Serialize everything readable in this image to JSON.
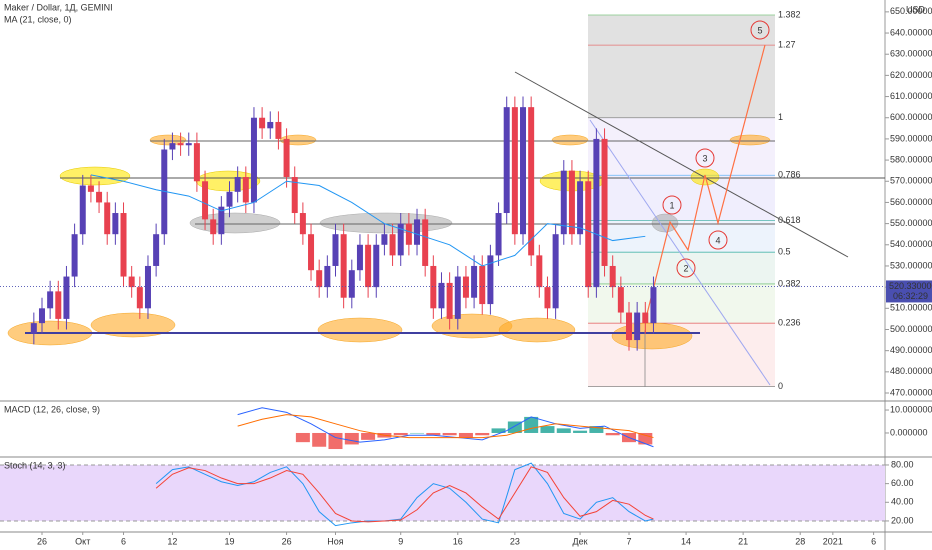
{
  "chart_data": [
    {
      "type": "candlestick",
      "title": "Maker / Dollar, 1Д, GEMINI",
      "currency": "USD",
      "x": [
        -1,
        0,
        1,
        2,
        3,
        4,
        5,
        6,
        7,
        8,
        9,
        10,
        11,
        12,
        13,
        14,
        15,
        16,
        17,
        18,
        19,
        20,
        21,
        22,
        23,
        24,
        25,
        26,
        27,
        28,
        29,
        30,
        31,
        32,
        33,
        34,
        35,
        36,
        37,
        38,
        39,
        40,
        41,
        42,
        43,
        44,
        45,
        46,
        47,
        48,
        49,
        50,
        51,
        52,
        53,
        54,
        55,
        56,
        57,
        58,
        59,
        60,
        61,
        62,
        63,
        64,
        65,
        66,
        67,
        68,
        69,
        70,
        71,
        72,
        73,
        74,
        75
      ],
      "open": [
        498,
        503,
        510,
        518,
        505,
        525,
        545,
        568,
        565,
        560,
        545,
        555,
        525,
        520,
        510,
        530,
        545,
        585,
        588,
        587,
        588,
        570,
        552,
        545,
        558,
        565,
        572,
        560,
        600,
        595,
        598,
        590,
        572,
        555,
        545,
        528,
        520,
        530,
        545,
        515,
        528,
        540,
        520,
        540,
        545,
        535,
        550,
        540,
        552,
        530,
        510,
        522,
        505,
        525,
        515,
        530,
        512,
        535,
        555,
        605,
        545,
        605,
        535,
        520,
        510,
        545,
        575,
        545,
        570,
        520,
        590,
        530,
        520,
        508,
        495,
        508,
        503
      ],
      "high": [
        508,
        515,
        523,
        523,
        530,
        550,
        573,
        573,
        570,
        565,
        560,
        560,
        530,
        525,
        535,
        550,
        590,
        593,
        593,
        593,
        593,
        575,
        557,
        563,
        570,
        577,
        577,
        605,
        605,
        603,
        603,
        595,
        577,
        560,
        550,
        533,
        535,
        550,
        550,
        533,
        545,
        545,
        545,
        550,
        550,
        555,
        555,
        557,
        557,
        535,
        527,
        527,
        530,
        530,
        535,
        535,
        540,
        560,
        610,
        610,
        610,
        610,
        540,
        525,
        550,
        580,
        580,
        575,
        575,
        595,
        595,
        535,
        525,
        513,
        513,
        513,
        525
      ],
      "low": [
        493,
        498,
        505,
        500,
        500,
        520,
        540,
        560,
        555,
        540,
        540,
        520,
        515,
        505,
        505,
        525,
        540,
        580,
        582,
        582,
        565,
        547,
        540,
        540,
        553,
        560,
        555,
        555,
        590,
        590,
        585,
        567,
        550,
        540,
        523,
        515,
        515,
        525,
        510,
        510,
        523,
        515,
        515,
        535,
        530,
        530,
        535,
        535,
        525,
        505,
        505,
        500,
        500,
        510,
        510,
        507,
        507,
        530,
        550,
        540,
        540,
        530,
        515,
        505,
        505,
        540,
        540,
        540,
        515,
        515,
        525,
        515,
        503,
        490,
        490,
        498,
        498
      ],
      "close": [
        503,
        510,
        518,
        505,
        525,
        545,
        568,
        565,
        560,
        545,
        555,
        525,
        520,
        510,
        530,
        545,
        585,
        588,
        587,
        588,
        570,
        552,
        545,
        558,
        565,
        572,
        560,
        600,
        595,
        598,
        590,
        572,
        555,
        545,
        528,
        520,
        530,
        545,
        515,
        528,
        540,
        520,
        540,
        545,
        535,
        550,
        540,
        552,
        530,
        510,
        522,
        505,
        525,
        515,
        530,
        512,
        535,
        555,
        605,
        545,
        605,
        535,
        520,
        510,
        545,
        575,
        545,
        570,
        520,
        590,
        530,
        520,
        508,
        495,
        508,
        503,
        520
      ],
      "up_color": "#5741b5",
      "down_color": "#e8414f",
      "ma": {
        "name": "MA (21, close, 0)",
        "color": "#2196f3",
        "x": [
          6,
          10,
          14,
          18,
          22,
          26,
          30,
          34,
          38,
          42,
          46,
          50,
          54,
          58,
          62,
          66,
          70,
          74
        ],
        "values": [
          573,
          570,
          566,
          563,
          556,
          560,
          570,
          568,
          560,
          550,
          545,
          540,
          530,
          535,
          550,
          548,
          542,
          544
        ]
      },
      "last_price": {
        "value": 520.33,
        "label": "520.330000",
        "countdown": "06:32:29",
        "color": "#4a4fb0"
      },
      "fib": {
        "low": 473,
        "high": 600,
        "levels": [
          0,
          0.236,
          0.382,
          0.5,
          0.618,
          0.786,
          1,
          1.27,
          1.382
        ]
      },
      "annotations": [
        "1",
        "2",
        "3",
        "4",
        "5"
      ],
      "xlim": [
        -5.15,
        103.4
      ],
      "xticks": [
        {
          "value": 0,
          "label": "26"
        },
        {
          "value": 5,
          "label": "Окт"
        },
        {
          "value": 10,
          "label": "6"
        },
        {
          "value": 16,
          "label": "12"
        },
        {
          "value": 23,
          "label": "19"
        },
        {
          "value": 30,
          "label": "26"
        },
        {
          "value": 36,
          "label": "Ноя"
        },
        {
          "value": 44,
          "label": "9"
        },
        {
          "value": 51,
          "label": "16"
        },
        {
          "value": 58,
          "label": "23"
        },
        {
          "value": 66,
          "label": "Дек"
        },
        {
          "value": 72,
          "label": "7"
        },
        {
          "value": 79,
          "label": "14"
        },
        {
          "value": 86,
          "label": "21"
        },
        {
          "value": 93,
          "label": "28"
        },
        {
          "value": 97,
          "label": "2021"
        },
        {
          "value": 102,
          "label": "6"
        }
      ],
      "ylim": [
        466.7,
        655.6
      ],
      "yticks": [
        {
          "value": 470,
          "label": "470.000000"
        },
        {
          "value": 480,
          "label": "480.000000"
        },
        {
          "value": 490,
          "label": "490.000000"
        },
        {
          "value": 500,
          "label": "500.000000"
        },
        {
          "value": 510,
          "label": "510.000000"
        },
        {
          "value": 520,
          "label": "520.000000"
        },
        {
          "value": 530,
          "label": "530.000000"
        },
        {
          "value": 540,
          "label": "540.000000"
        },
        {
          "value": 550,
          "label": "550.000000"
        },
        {
          "value": 560,
          "label": "560.000000"
        },
        {
          "value": 570,
          "label": "570.000000"
        },
        {
          "value": 580,
          "label": "580.000000"
        },
        {
          "value": 590,
          "label": "590.000000"
        },
        {
          "value": 600,
          "label": "600.000000"
        },
        {
          "value": 610,
          "label": "610.000000"
        },
        {
          "value": 620,
          "label": "620.000000"
        },
        {
          "value": 630,
          "label": "630.000000"
        },
        {
          "value": 640,
          "label": "640.000000"
        },
        {
          "value": 650,
          "label": "650.000000"
        }
      ]
    },
    {
      "type": "macd",
      "title": "MACD (12, 26, close, 9)",
      "histogram": {
        "up_color": "#26a69a",
        "down_color": "#ef5350",
        "x": [
          32,
          34,
          36,
          38,
          40,
          42,
          44,
          46,
          48,
          50,
          52,
          54,
          56,
          58,
          60,
          62,
          64,
          66,
          68,
          70,
          72,
          74
        ],
        "values": [
          -4,
          -6,
          -7,
          -5,
          -3,
          -2,
          -1,
          0,
          -1,
          -1,
          -2,
          -1,
          2,
          5,
          7,
          3,
          2,
          1,
          3,
          -1,
          -4,
          -5
        ]
      },
      "macd": {
        "color": "#2962ff",
        "x": [
          24,
          27,
          30,
          33,
          36,
          39,
          42,
          45,
          48,
          51,
          54,
          57,
          60,
          63,
          66,
          69,
          72,
          75
        ],
        "values": [
          8,
          11,
          9,
          4,
          -2,
          -4,
          -3,
          -1,
          -1,
          -2,
          -3,
          1,
          7,
          4,
          2,
          3,
          -2,
          -6
        ]
      },
      "signal": {
        "color": "#ff6d00",
        "x": [
          24,
          27,
          30,
          33,
          36,
          39,
          42,
          45,
          48,
          51,
          54,
          57,
          60,
          63,
          66,
          69,
          72,
          75
        ],
        "values": [
          3,
          6,
          8,
          7,
          4,
          1,
          -1,
          -2,
          -2,
          -2,
          -2,
          -1,
          2,
          4,
          3,
          2,
          1,
          -2
        ]
      },
      "ylim": [
        -9.6,
        13.5
      ],
      "yticks": [
        {
          "value": 10,
          "label": "10.000000"
        },
        {
          "value": 0,
          "label": "0.000000"
        }
      ]
    },
    {
      "type": "stoch",
      "title": "Stoch (14, 3, 3)",
      "band_color": "#e9d7fb",
      "k": {
        "color": "#2196f3",
        "x": [
          14,
          16,
          18,
          20,
          22,
          24,
          26,
          28,
          30,
          32,
          34,
          36,
          38,
          40,
          42,
          44,
          46,
          48,
          50,
          52,
          54,
          56,
          58,
          60,
          62,
          64,
          66,
          68,
          70,
          72,
          74,
          75
        ],
        "values": [
          60,
          75,
          78,
          70,
          62,
          58,
          62,
          72,
          78,
          60,
          30,
          15,
          18,
          20,
          20,
          22,
          45,
          60,
          55,
          40,
          22,
          18,
          75,
          82,
          60,
          28,
          22,
          40,
          45,
          30,
          20,
          22
        ]
      },
      "d": {
        "color": "#f44336",
        "x": [
          14,
          16,
          18,
          20,
          22,
          24,
          26,
          28,
          30,
          32,
          34,
          36,
          38,
          40,
          42,
          44,
          46,
          48,
          50,
          52,
          54,
          56,
          58,
          60,
          62,
          64,
          66,
          68,
          70,
          72,
          74,
          75
        ],
        "values": [
          55,
          70,
          77,
          74,
          66,
          60,
          60,
          66,
          74,
          70,
          50,
          28,
          20,
          19,
          20,
          21,
          32,
          50,
          58,
          50,
          35,
          22,
          50,
          78,
          72,
          45,
          25,
          30,
          42,
          38,
          26,
          22
        ]
      },
      "ylim": [
        10.3,
        86.4
      ],
      "yticks": [
        {
          "value": 80,
          "label": "80.00"
        },
        {
          "value": 60,
          "label": "60.00"
        },
        {
          "value": 40,
          "label": "40.00"
        },
        {
          "value": 20,
          "label": "20.00"
        }
      ]
    }
  ]
}
